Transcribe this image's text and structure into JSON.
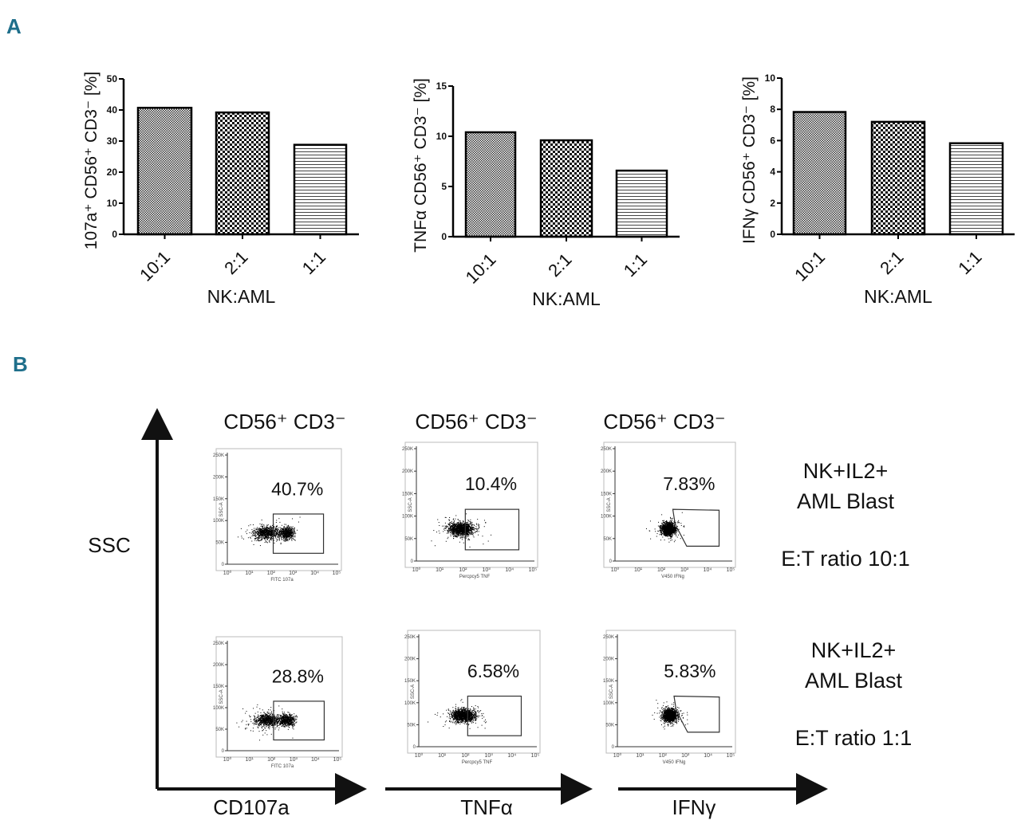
{
  "panels": {
    "a": "A",
    "b": "B"
  },
  "chart_data": [
    {
      "type": "bar",
      "categories": [
        "10:1",
        "2:1",
        "1:1"
      ],
      "values": [
        40.7,
        39.2,
        28.8
      ],
      "ylabel": "107a⁺ CD56⁺ CD3⁻ [%]",
      "xlabel": "NK:AML",
      "ylim": [
        0,
        50
      ],
      "yticks": [
        0,
        10,
        20,
        30,
        40,
        50
      ],
      "patterns": [
        "fine-checker",
        "checker",
        "horizontal-lines"
      ]
    },
    {
      "type": "bar",
      "categories": [
        "10:1",
        "2:1",
        "1:1"
      ],
      "values": [
        10.4,
        9.6,
        6.58
      ],
      "ylabel": "TNFα CD56⁺ CD3⁻ [%]",
      "xlabel": "NK:AML",
      "ylim": [
        0,
        15
      ],
      "yticks": [
        0,
        5,
        10,
        15
      ],
      "patterns": [
        "fine-checker",
        "checker",
        "horizontal-lines"
      ]
    },
    {
      "type": "bar",
      "categories": [
        "10:1",
        "2:1",
        "1:1"
      ],
      "values": [
        7.83,
        7.2,
        5.83
      ],
      "ylabel": "IFNγ CD56⁺ CD3⁻ [%]",
      "xlabel": "NK:AML",
      "ylim": [
        0,
        10
      ],
      "yticks": [
        0,
        2,
        4,
        6,
        8,
        10
      ],
      "patterns": [
        "fine-checker",
        "checker",
        "horizontal-lines"
      ]
    }
  ],
  "flow": {
    "y_axis": "SSC",
    "x_axes": [
      "CD107a",
      "TNFα",
      "IFNγ"
    ],
    "column_headers": [
      "CD56⁺ CD3⁻",
      "CD56⁺ CD3⁻",
      "CD56⁺ CD3⁻"
    ],
    "plot_xlabels": [
      "FITC 107a",
      "Percpcy5 TNF",
      "V450 IFNg"
    ],
    "plot_ylabel": "SSC-A",
    "yticks": [
      "0",
      "50K",
      "100K",
      "150K",
      "200K",
      "250K"
    ],
    "xticks": [
      "10⁰",
      "10¹",
      "10²",
      "10³",
      "10⁴",
      "10⁵"
    ],
    "rows": [
      {
        "percents": [
          "40.7%",
          "10.4%",
          "7.83%"
        ],
        "condition": [
          "NK+IL2+",
          "AML Blast"
        ],
        "ratio": "E:T ratio 10:1"
      },
      {
        "percents": [
          "28.8%",
          "6.58%",
          "5.83%"
        ],
        "condition": [
          "NK+IL2+",
          "AML Blast"
        ],
        "ratio": "E:T ratio 1:1"
      }
    ]
  }
}
